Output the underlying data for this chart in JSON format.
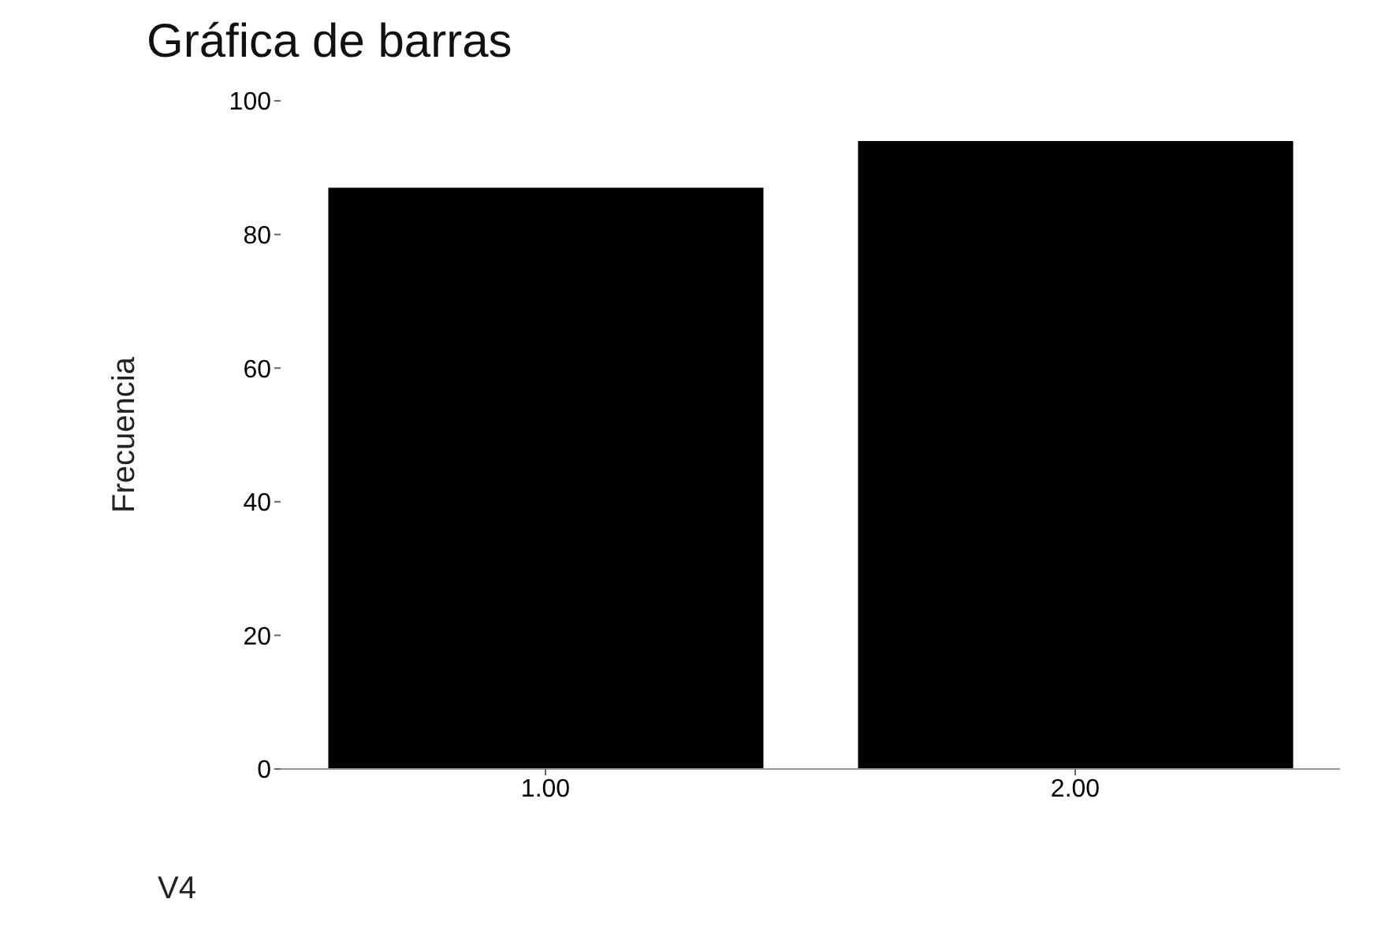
{
  "chart_data": {
    "type": "bar",
    "title": "Gráfica de barras",
    "xlabel": "V4",
    "ylabel": "Frecuencia",
    "categories": [
      "1.00",
      "2.00"
    ],
    "values": [
      87,
      94
    ],
    "color": "#000000",
    "ylim": [
      0,
      100
    ],
    "yticks": [
      0,
      20,
      40,
      60,
      80,
      100
    ],
    "grid": false
  }
}
